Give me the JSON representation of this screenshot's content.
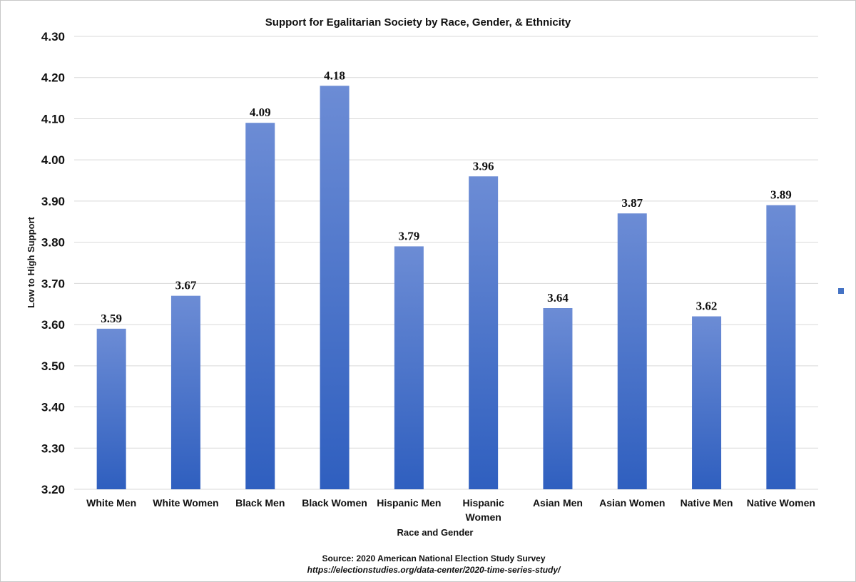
{
  "chart_data": {
    "type": "bar",
    "title": "Support for Egalitarian Society by Race, Gender, & Ethnicity",
    "xlabel": "Race and Gender",
    "ylabel": "Low to High Support",
    "categories": [
      [
        "White Men"
      ],
      [
        "White Women"
      ],
      [
        "Black Men"
      ],
      [
        "Black Women"
      ],
      [
        "Hispanic Men"
      ],
      [
        "Hispanic",
        "Women"
      ],
      [
        "Asian Men"
      ],
      [
        "Asian Women"
      ],
      [
        "Native Men"
      ],
      [
        "Native Women"
      ]
    ],
    "values": [
      3.59,
      3.67,
      4.09,
      4.18,
      3.79,
      3.96,
      3.64,
      3.87,
      3.62,
      3.89
    ],
    "data_labels": [
      "3.59",
      "3.67",
      "4.09",
      "4.18",
      "3.79",
      "3.96",
      "3.64",
      "3.87",
      "3.62",
      "3.89"
    ],
    "ylim": [
      3.2,
      4.3
    ],
    "yticks": [
      "3.20",
      "3.30",
      "3.40",
      "3.50",
      "3.60",
      "3.70",
      "3.80",
      "3.90",
      "4.00",
      "4.10",
      "4.20",
      "4.30"
    ],
    "grid": true,
    "legend": "right",
    "colors": {
      "bar_top": "#6C8CD5",
      "bar_bottom": "#2F5FBF",
      "legend_marker": "#4472C4"
    }
  },
  "source": {
    "line1": "Source: 2020 American National Election Study Survey",
    "line2": "https://electionstudies.org/data-center/2020-time-series-study/"
  }
}
